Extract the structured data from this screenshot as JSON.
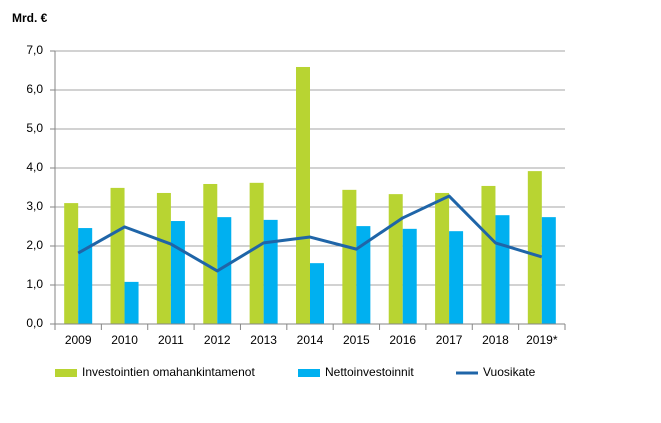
{
  "chart_data": {
    "type": "bar_line",
    "y_axis_title": "Mrd. €",
    "categories": [
      "2009",
      "2010",
      "2011",
      "2012",
      "2013",
      "2014",
      "2015",
      "2016",
      "2017",
      "2018",
      "2019*"
    ],
    "series": [
      {
        "name": "Investointien omahankintamenot",
        "type": "bar",
        "color": "#b8d432",
        "values": [
          3.1,
          3.49,
          3.36,
          3.59,
          3.62,
          6.59,
          3.44,
          3.33,
          3.36,
          3.54,
          3.92
        ]
      },
      {
        "name": "Nettoinvestoinnit",
        "type": "bar",
        "color": "#00b0f0",
        "values": [
          2.46,
          1.08,
          2.64,
          2.74,
          2.67,
          1.56,
          2.51,
          2.44,
          2.38,
          2.79,
          2.74
        ]
      },
      {
        "name": "Vuosikate",
        "type": "line",
        "color": "#1f65a8",
        "values": [
          1.82,
          2.49,
          2.05,
          1.36,
          2.08,
          2.23,
          1.92,
          2.72,
          3.28,
          2.08,
          1.72
        ]
      }
    ],
    "ylim": [
      0,
      7
    ],
    "yticks": [
      {
        "value": 0,
        "label": "0,0"
      },
      {
        "value": 1,
        "label": "1,0"
      },
      {
        "value": 2,
        "label": "2,0"
      },
      {
        "value": 3,
        "label": "3,0"
      },
      {
        "value": 4,
        "label": "4,0"
      },
      {
        "value": 5,
        "label": "5,0"
      },
      {
        "value": 6,
        "label": "6,0"
      },
      {
        "value": 7,
        "label": "7,0"
      }
    ],
    "grid": true
  }
}
